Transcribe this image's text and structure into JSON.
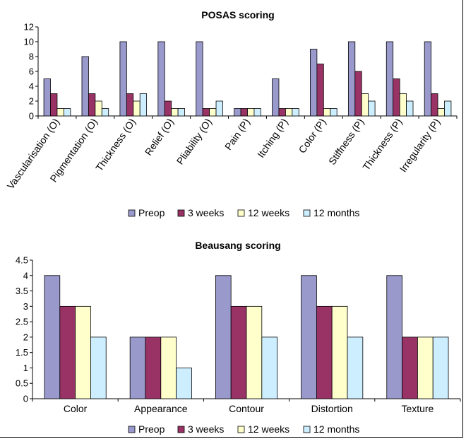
{
  "colors": {
    "preop": "#9999cc",
    "three_weeks": "#993366",
    "twelve_weeks": "#ffffcc",
    "twelve_months": "#cceeff"
  },
  "chart_data": [
    {
      "type": "bar",
      "title": "POSAS scoring",
      "categories": [
        "Vascularisation (O)",
        "Pigmentation (O)",
        "Thickness (O)",
        "Relief (O)",
        "Pliability (O)",
        "Pain (P)",
        "Itching (P)",
        "Color (P)",
        "Stiffness (P)",
        "Thickness (P)",
        "Irregularity (P)"
      ],
      "ylim": [
        0,
        12
      ],
      "yticks": [
        "0",
        "2",
        "4",
        "6",
        "8",
        "10",
        "12"
      ],
      "legend_position": "bottom",
      "series": [
        {
          "name": "Preop",
          "values": [
            5,
            8,
            10,
            10,
            10,
            1,
            5,
            9,
            10,
            10,
            10
          ]
        },
        {
          "name": "3 weeks",
          "values": [
            3,
            3,
            3,
            2,
            1,
            1,
            1,
            7,
            6,
            5,
            3
          ]
        },
        {
          "name": "12 weeks",
          "values": [
            1,
            2,
            2,
            1,
            1,
            1,
            1,
            1,
            3,
            3,
            1
          ]
        },
        {
          "name": "12 months",
          "values": [
            1,
            1,
            3,
            1,
            2,
            1,
            1,
            1,
            2,
            2,
            2
          ]
        }
      ]
    },
    {
      "type": "bar",
      "title": "Beausang scoring",
      "categories": [
        "Color",
        "Appearance",
        "Contour",
        "Distortion",
        "Texture"
      ],
      "ylim": [
        0,
        4.5
      ],
      "yticks": [
        "0",
        "0.5",
        "1",
        "1.5",
        "2",
        "2.5",
        "3",
        "3.5",
        "4",
        "4.5"
      ],
      "legend_position": "bottom",
      "series": [
        {
          "name": "Preop",
          "values": [
            4,
            2,
            4,
            4,
            4
          ]
        },
        {
          "name": "3 weeks",
          "values": [
            3,
            2,
            3,
            3,
            2
          ]
        },
        {
          "name": "12 weeks",
          "values": [
            3,
            2,
            3,
            3,
            2
          ]
        },
        {
          "name": "12 months",
          "values": [
            2,
            1,
            2,
            2,
            2
          ]
        }
      ]
    }
  ]
}
